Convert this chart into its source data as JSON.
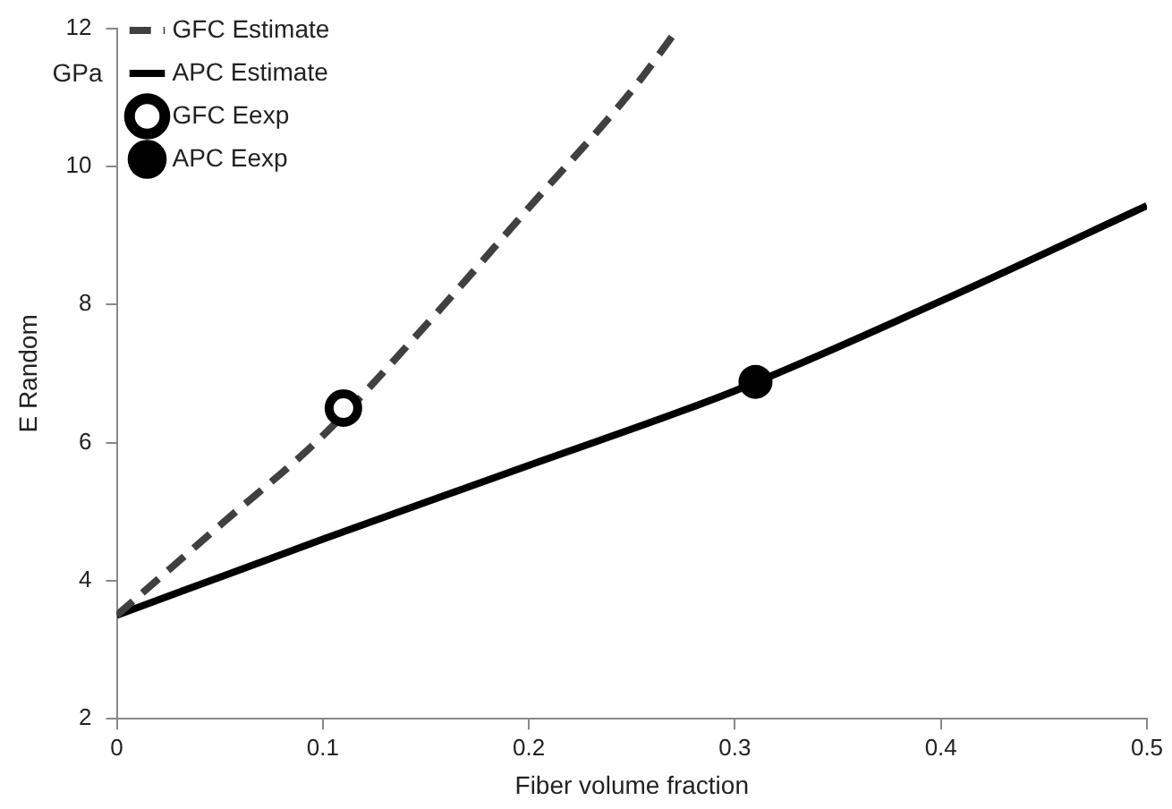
{
  "chart_data": {
    "type": "line",
    "xlabel": "Fiber volume fraction",
    "ylabel": "E Random",
    "annotations": [
      "GPa"
    ],
    "xlim": [
      0,
      0.5
    ],
    "xticks": [
      0,
      0.1,
      0.2,
      0.3,
      0.4,
      0.5
    ],
    "ylim": [
      2,
      12
    ],
    "yticks": [
      2,
      4,
      6,
      8,
      10,
      12
    ],
    "grid": false,
    "legend": "top left",
    "series": [
      {
        "name": "GFC Estimate",
        "line_style": "dashed",
        "marker": "none",
        "color": "#404040",
        "x": [
          0,
          0.05,
          0.1,
          0.15,
          0.2,
          0.25,
          0.2725
        ],
        "values": [
          3.5,
          4.8,
          6.1,
          7.7,
          9.4,
          11.1,
          12
        ]
      },
      {
        "name": "APC Estimate",
        "line_style": "solid",
        "marker": "none",
        "color": "#000000",
        "x": [
          0,
          0.1,
          0.2,
          0.3,
          0.4,
          0.5
        ],
        "values": [
          3.5,
          4.6,
          5.67,
          6.75,
          8.05,
          9.43
        ]
      },
      {
        "name": "GFC Eexp",
        "type": "scatter",
        "marker": "circle",
        "color": "#000000",
        "x": [
          0.11
        ],
        "values": [
          6.5
        ]
      },
      {
        "name": "APC Eexp",
        "type": "scatter",
        "marker": "circle",
        "color": "#000000",
        "x": [
          0.31
        ],
        "values": [
          6.88
        ]
      }
    ]
  }
}
